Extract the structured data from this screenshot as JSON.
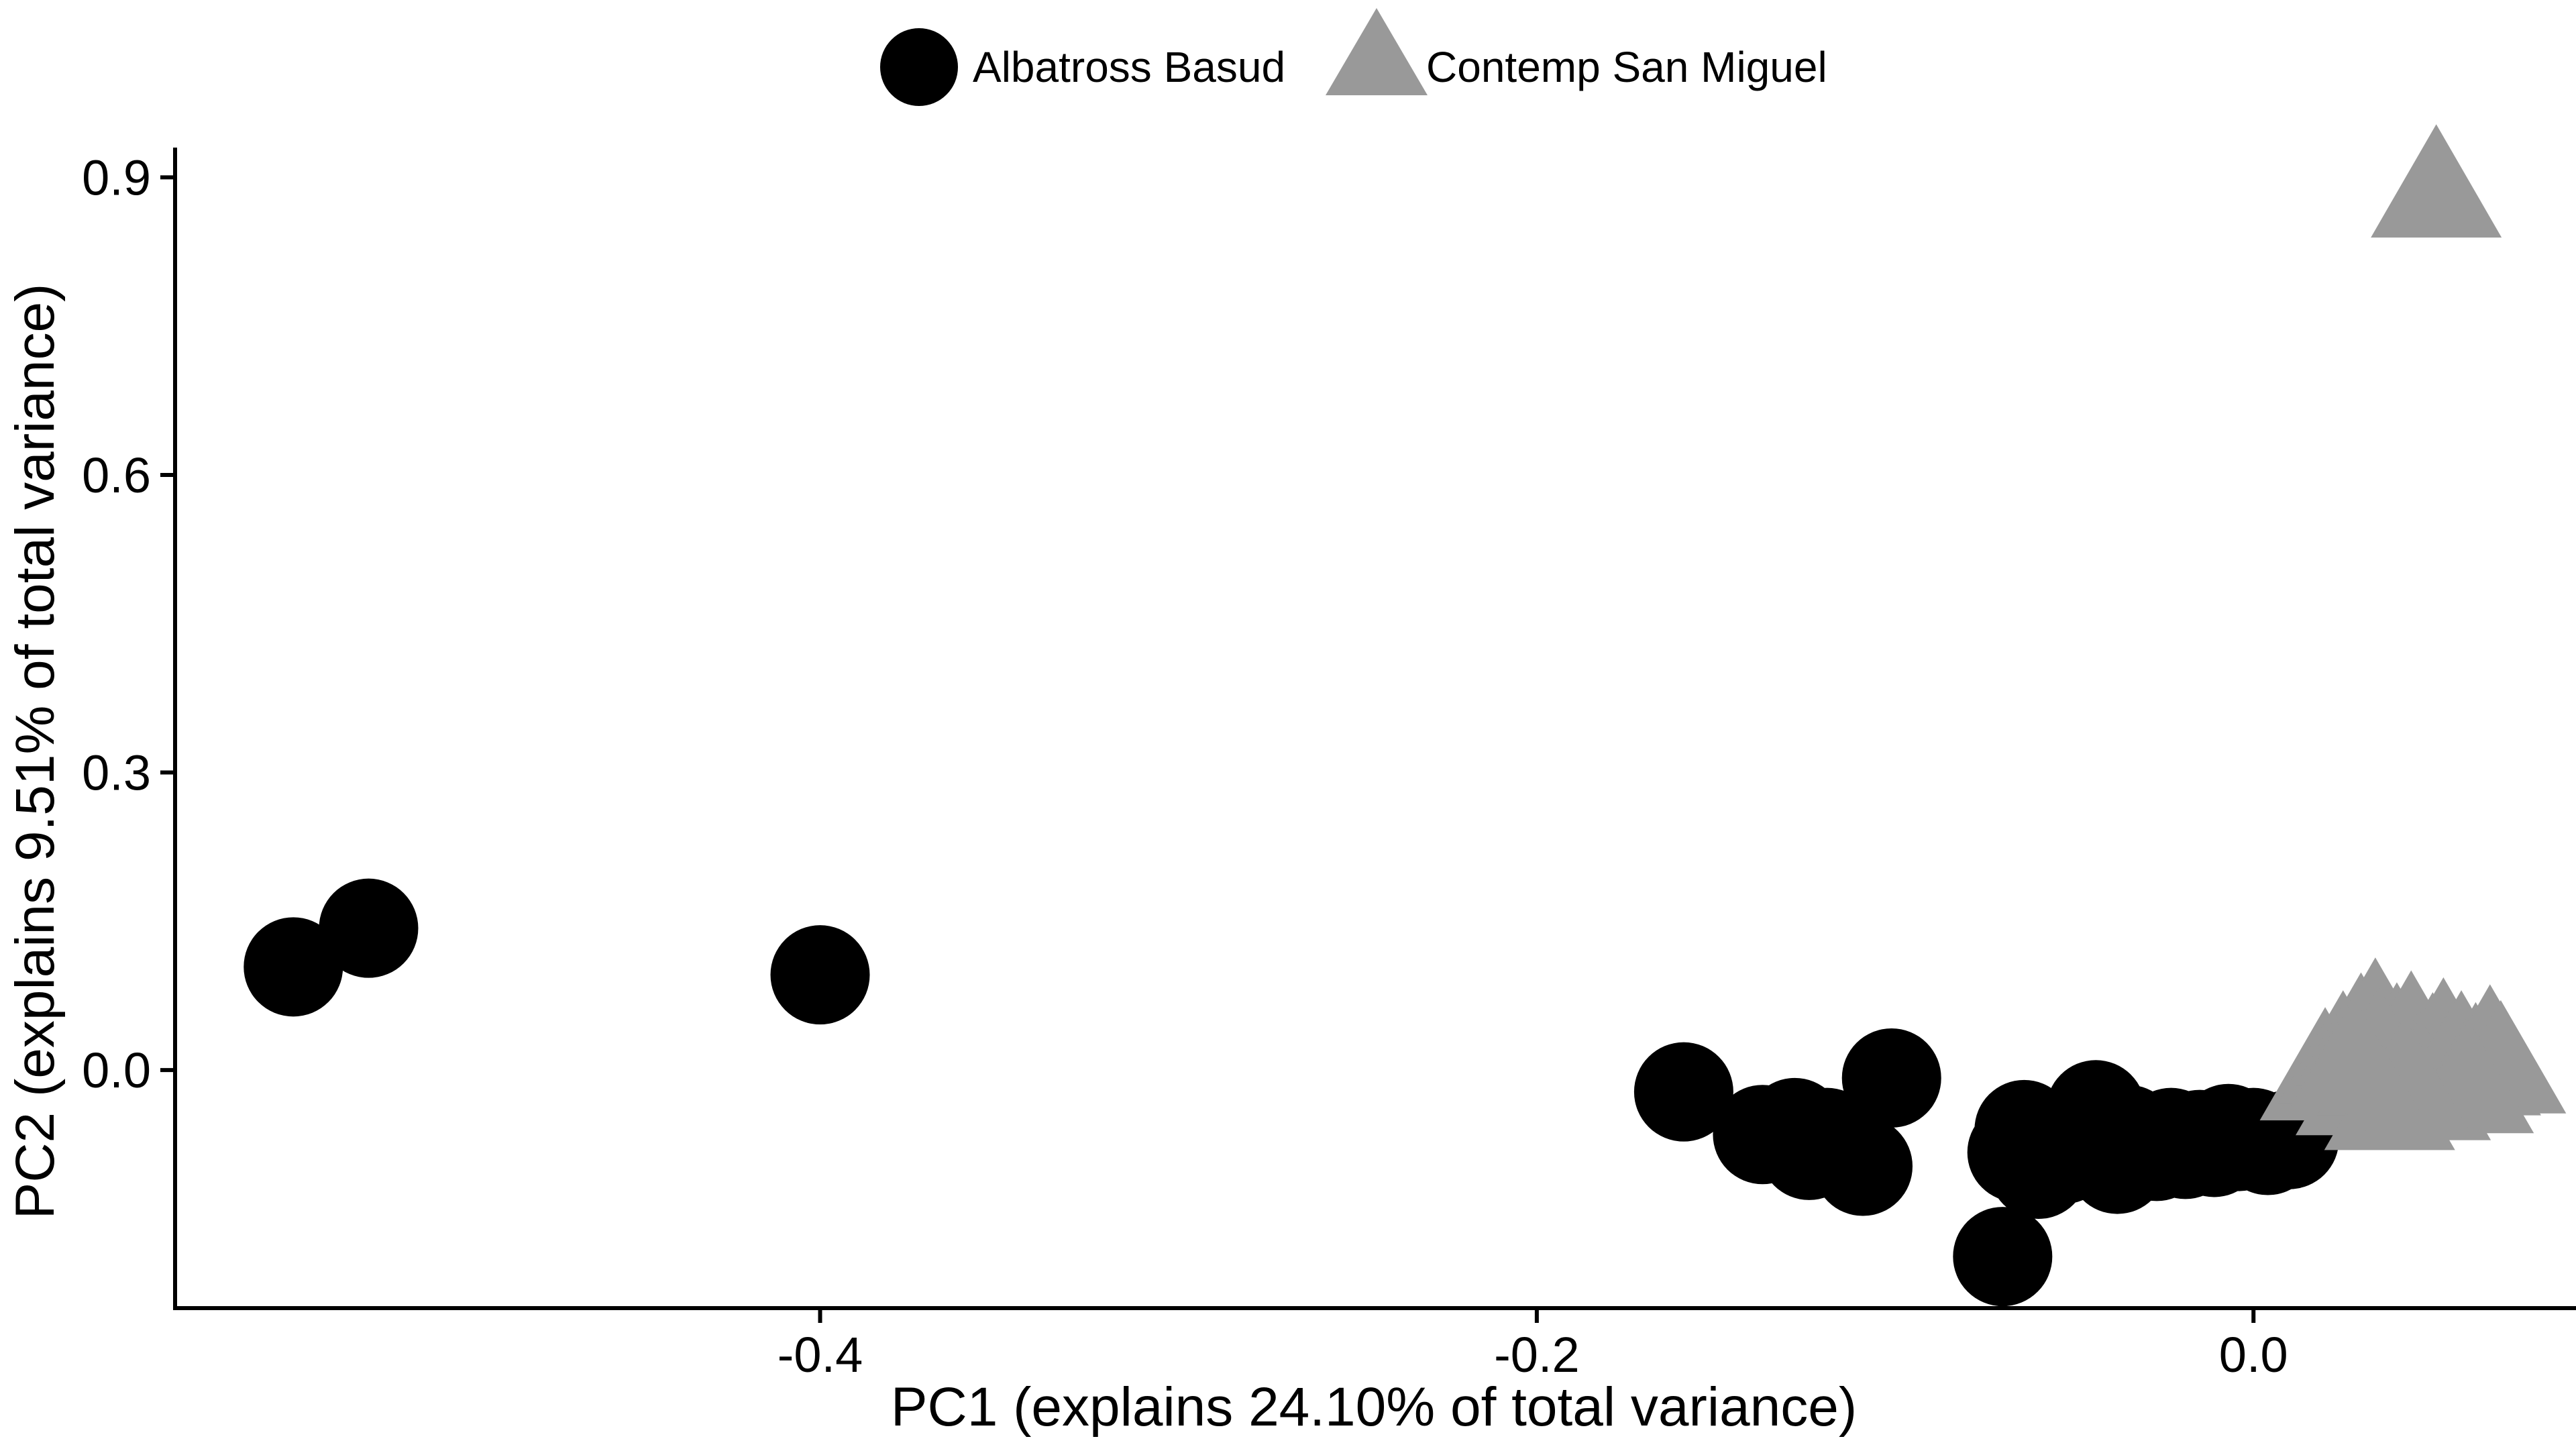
{
  "chart_data": {
    "type": "scatter",
    "title": "",
    "xlabel": "PC1 (explains 24.10% of total variance)",
    "ylabel": "PC2 (explains 9.51% of total variance)",
    "xlim": [
      -0.58,
      0.09
    ],
    "ylim": [
      -0.24,
      0.93
    ],
    "x_ticks": [
      -0.4,
      -0.2,
      0.0
    ],
    "x_tick_labels": [
      "-0.4",
      "-0.2",
      "0.0"
    ],
    "y_ticks": [
      0.0,
      0.3,
      0.6,
      0.9
    ],
    "y_tick_labels": [
      "0.0",
      "0.3",
      "0.6",
      "0.9"
    ],
    "grid": false,
    "legend_position": "top",
    "series": [
      {
        "name": "Albatross Basud",
        "marker": "circle",
        "color": "#000000",
        "points": [
          [
            -0.547,
            0.104
          ],
          [
            -0.526,
            0.143
          ],
          [
            -0.4,
            0.096
          ],
          [
            -0.159,
            -0.022
          ],
          [
            -0.137,
            -0.065
          ],
          [
            -0.128,
            -0.058
          ],
          [
            -0.124,
            -0.081
          ],
          [
            -0.119,
            -0.068
          ],
          [
            -0.109,
            -0.097
          ],
          [
            -0.101,
            -0.008
          ],
          [
            -0.07,
            -0.188
          ],
          [
            -0.066,
            -0.083
          ],
          [
            -0.064,
            -0.06
          ],
          [
            -0.06,
            -0.1
          ],
          [
            -0.057,
            -0.072
          ],
          [
            -0.053,
            -0.085
          ],
          [
            -0.05,
            -0.065
          ],
          [
            -0.047,
            -0.055
          ],
          [
            -0.044,
            -0.04
          ],
          [
            -0.042,
            -0.078
          ],
          [
            -0.038,
            -0.095
          ],
          [
            -0.035,
            -0.065
          ],
          [
            -0.031,
            -0.073
          ],
          [
            -0.027,
            -0.082
          ],
          [
            -0.023,
            -0.068
          ],
          [
            -0.019,
            -0.08
          ],
          [
            -0.015,
            -0.07
          ],
          [
            -0.011,
            -0.078
          ],
          [
            -0.007,
            -0.064
          ],
          [
            -0.004,
            -0.072
          ],
          [
            0.0,
            -0.068
          ],
          [
            0.004,
            -0.076
          ],
          [
            0.01,
            -0.07
          ]
        ]
      },
      {
        "name": "Contemp San Miguel",
        "marker": "triangle",
        "color": "#999999",
        "points": [
          [
            0.051,
            0.885
          ],
          [
            0.02,
            -0.005
          ],
          [
            0.025,
            0.012
          ],
          [
            0.03,
            0.03
          ],
          [
            0.034,
            0.045
          ],
          [
            0.03,
            -0.02
          ],
          [
            0.036,
            0.0
          ],
          [
            0.04,
            0.02
          ],
          [
            0.044,
            0.032
          ],
          [
            0.038,
            -0.035
          ],
          [
            0.046,
            -0.01
          ],
          [
            0.05,
            0.01
          ],
          [
            0.053,
            0.025
          ],
          [
            0.048,
            -0.025
          ],
          [
            0.055,
            -0.005
          ],
          [
            0.058,
            0.012
          ],
          [
            0.062,
            0.0
          ],
          [
            0.066,
            0.018
          ],
          [
            0.069,
            0.002
          ],
          [
            0.06,
            -0.018
          ],
          [
            0.035,
            0.015
          ],
          [
            0.042,
            -0.015
          ],
          [
            0.028,
            0.005
          ]
        ]
      }
    ]
  }
}
